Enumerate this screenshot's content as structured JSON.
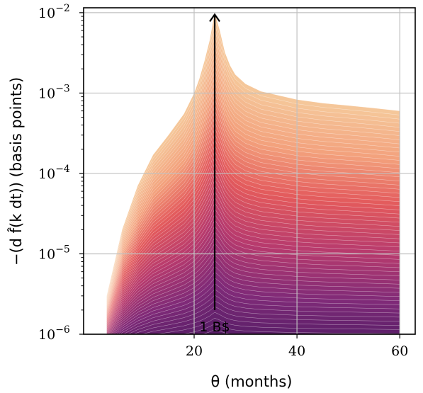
{
  "chart_data": {
    "type": "area",
    "xlabel": "θ (months)",
    "ylabel": "−(d f̂(k dt)) (basis points)",
    "xlim": [
      -1.5,
      63
    ],
    "ylim": [
      1e-06,
      0.0115
    ],
    "yscale": "log",
    "grid": true,
    "xticks": [
      20,
      40,
      60
    ],
    "xtick_labels": [
      "20",
      "40",
      "60"
    ],
    "yticks": [
      1e-06,
      1e-05,
      0.0001,
      0.001,
      0.01
    ],
    "ytick_labels": [
      {
        "base": "10",
        "exp": "−6"
      },
      {
        "base": "10",
        "exp": "−5"
      },
      {
        "base": "10",
        "exp": "−4"
      },
      {
        "base": "10",
        "exp": "−3"
      },
      {
        "base": "10",
        "exp": "−2"
      }
    ],
    "outer_envelope": {
      "x": [
        3,
        6,
        9,
        12,
        15,
        18,
        20,
        21,
        22,
        23,
        24,
        25,
        26,
        27,
        28,
        30,
        33,
        36,
        40,
        45,
        50,
        55,
        60
      ],
      "y": [
        3e-06,
        2e-05,
        7e-05,
        0.00017,
        0.0003,
        0.00055,
        0.001,
        0.0015,
        0.0025,
        0.0045,
        0.01,
        0.006,
        0.0032,
        0.0022,
        0.0017,
        0.0013,
        0.00105,
        0.00095,
        0.00083,
        0.00075,
        0.0007,
        0.00065,
        0.0006
      ]
    },
    "n_layers": 60,
    "colormap": [
      "#46185f",
      "#7e2a78",
      "#b83b6d",
      "#e35a5c",
      "#f3a27d",
      "#f5c79a"
    ],
    "annotation": {
      "text": "1 B$",
      "arrow_x": 24,
      "arrow_from_y": 2e-06,
      "arrow_to_y": 0.0095
    }
  }
}
